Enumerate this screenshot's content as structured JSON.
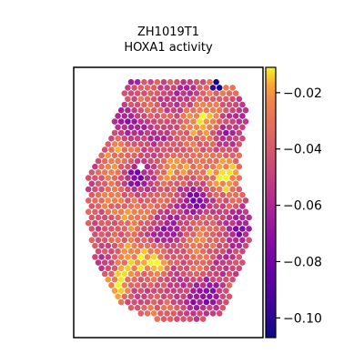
{
  "chart_data": {
    "type": "heatmap",
    "title": "ZH1019T1",
    "subtitle": "HOXA1 activity",
    "xlabel": "",
    "ylabel": "",
    "colormap": "plasma",
    "colorbar": {
      "vmin": -0.107,
      "vmax": -0.011,
      "ticks": [
        -0.02,
        -0.04,
        -0.06,
        -0.08,
        -0.1
      ],
      "tick_labels": [
        "−0.02",
        "−0.04",
        "−0.06",
        "−0.08",
        "−0.10"
      ]
    },
    "grid": false,
    "axes_ticks": false,
    "spot_pattern": "hexagonal tissue spots forming an irregular blob; sparse dark-purple spots scattered, yellow hotspots at right-center and lower-left",
    "colors": {
      "low": "#0d0887",
      "mid": "#cc4778",
      "high": "#f0f921",
      "frame": "#000000"
    }
  }
}
